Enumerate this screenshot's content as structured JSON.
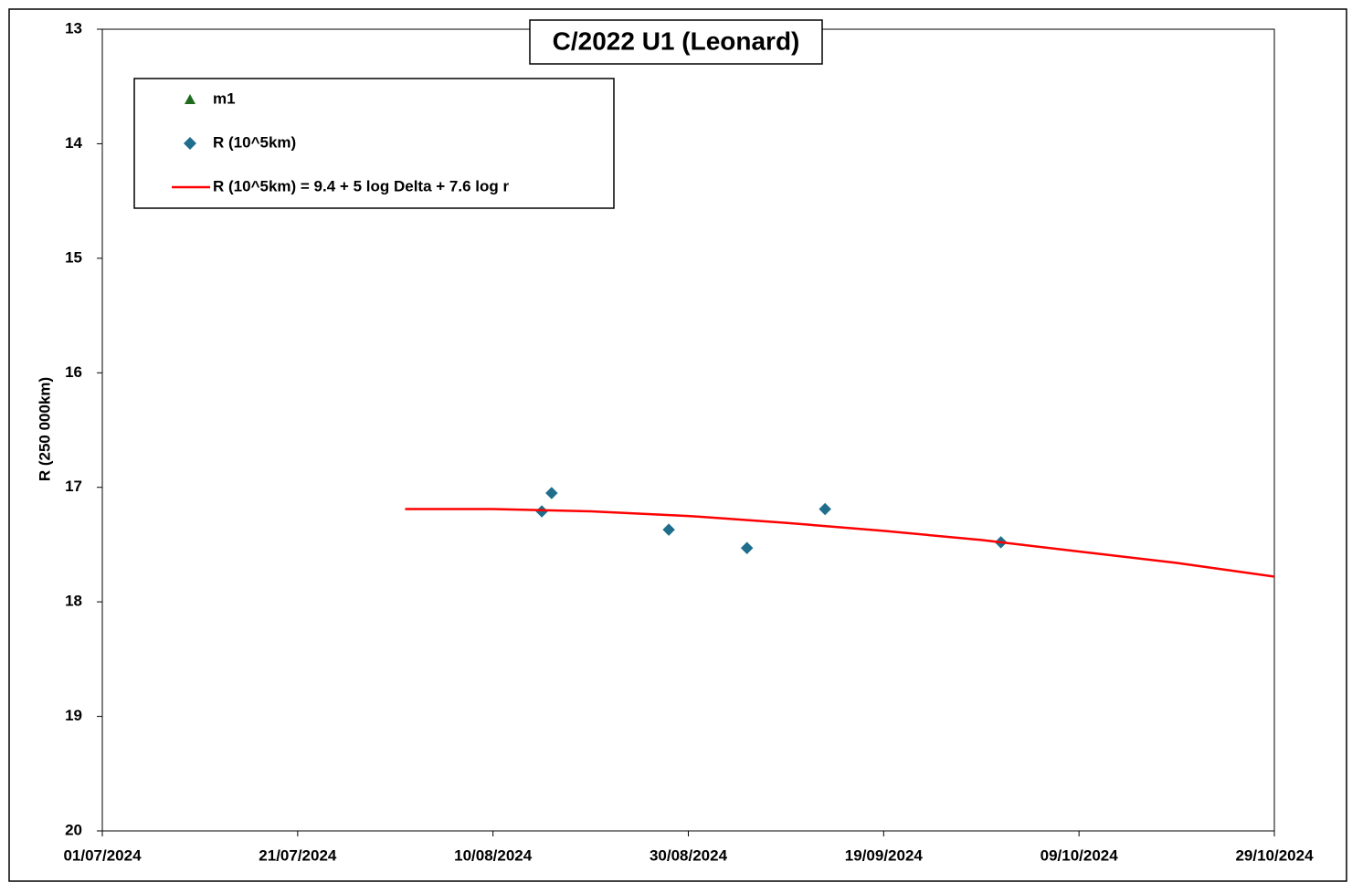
{
  "chart_data": {
    "type": "scatter",
    "title": "C/2022 U1 (Leonard)",
    "y_label": "R (250 000km)",
    "ylim": [
      13,
      20
    ],
    "yticks": [
      13,
      14,
      15,
      16,
      17,
      18,
      19,
      20
    ],
    "y_inverted": true,
    "xlim": [
      "01/07/2024",
      "29/10/2024"
    ],
    "xticks": [
      "01/07/2024",
      "21/07/2024",
      "10/08/2024",
      "30/08/2024",
      "19/09/2024",
      "09/10/2024",
      "29/10/2024"
    ],
    "legend": "upper left",
    "series": [
      {
        "name": "m1",
        "marker": "triangle",
        "color": "#1e6b1e",
        "x": [],
        "values": []
      },
      {
        "name": "R (10^5km)",
        "marker": "diamond",
        "color": "#1f6e8c",
        "x": [
          "15/08/2024",
          "16/08/2024",
          "28/08/2024",
          "05/09/2024",
          "13/09/2024",
          "01/10/2024"
        ],
        "values": [
          17.21,
          17.05,
          17.37,
          17.53,
          17.19,
          17.48
        ]
      },
      {
        "name": "R (10^5km) = 9.4 + 5 log Delta + 7.6 log r",
        "marker": "line",
        "color": "#ff0000",
        "x": [
          "01/08/2024",
          "10/08/2024",
          "20/08/2024",
          "30/08/2024",
          "09/09/2024",
          "19/09/2024",
          "29/09/2024",
          "09/10/2024",
          "19/10/2024",
          "29/10/2024"
        ],
        "values": [
          17.19,
          17.19,
          17.21,
          17.25,
          17.31,
          17.38,
          17.46,
          17.56,
          17.66,
          17.78
        ]
      }
    ]
  }
}
